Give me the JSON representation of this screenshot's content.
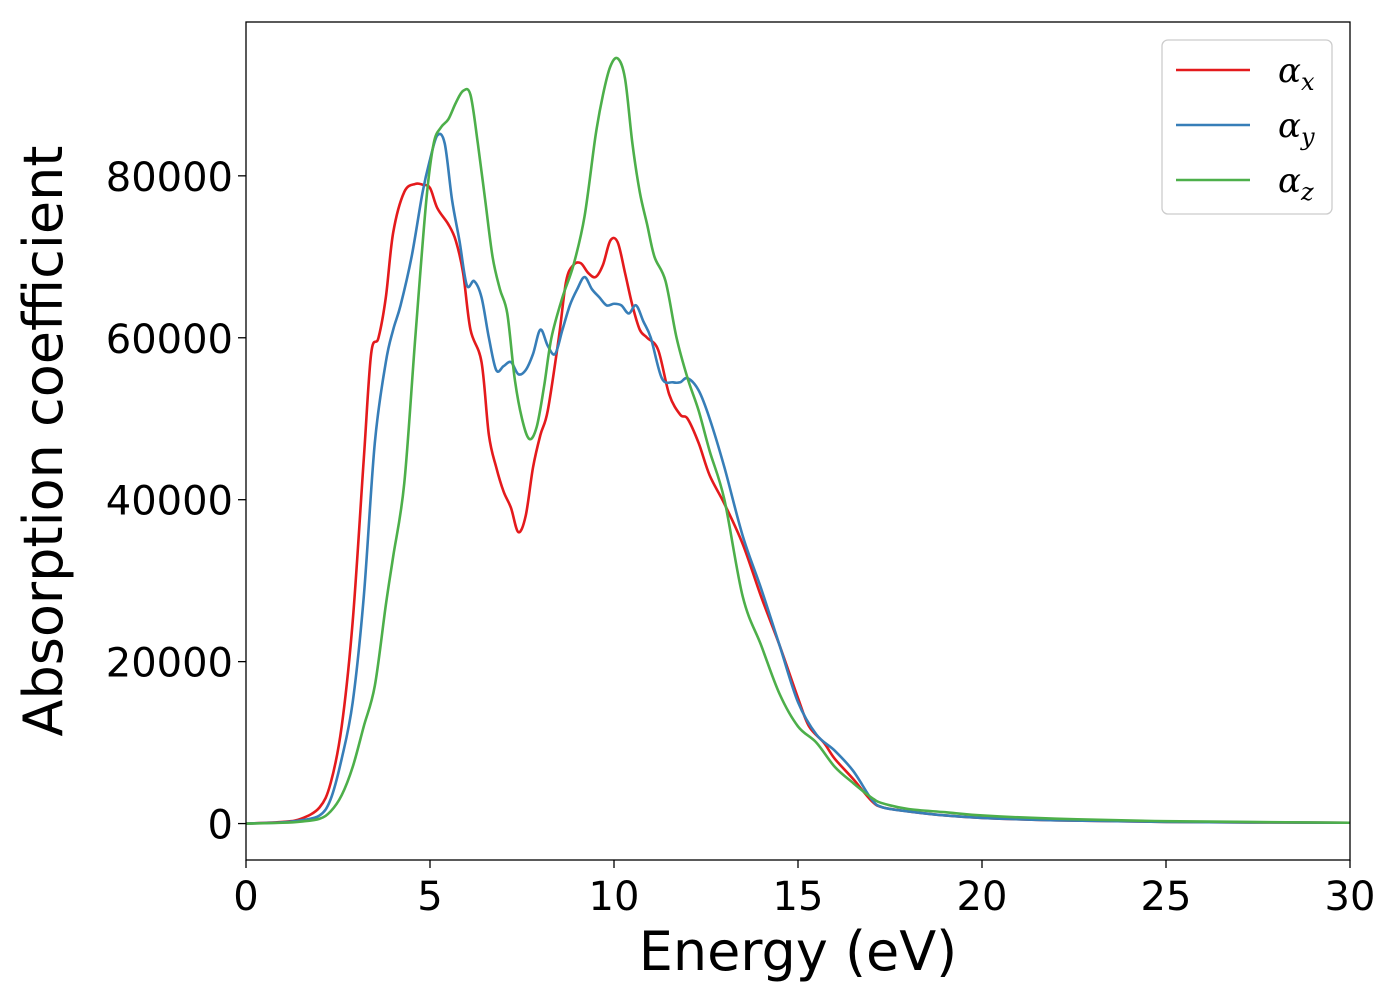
{
  "chart_data": {
    "type": "line",
    "xlabel": "Energy (eV)",
    "ylabel": "Absorption coefficient",
    "xlim": [
      0,
      30
    ],
    "ylim": [
      -4500,
      99000
    ],
    "xticks": [
      "0",
      "5",
      "10",
      "15",
      "20",
      "25",
      "30"
    ],
    "yticks": [
      "0",
      "20000",
      "40000",
      "60000",
      "80000"
    ],
    "grid": false,
    "legend_position": "top-right",
    "series": [
      {
        "name": "α",
        "subscript": "x",
        "color": "#e41a1c",
        "x": [
          0,
          1,
          1.5,
          2,
          2.3,
          2.6,
          2.9,
          3.2,
          3.4,
          3.6,
          3.8,
          4.0,
          4.3,
          4.6,
          4.8,
          5.0,
          5.2,
          5.5,
          5.7,
          5.9,
          6.1,
          6.4,
          6.6,
          6.8,
          7.0,
          7.2,
          7.4,
          7.6,
          7.8,
          8.0,
          8.2,
          8.5,
          8.7,
          8.9,
          9.1,
          9.3,
          9.5,
          9.7,
          9.9,
          10.1,
          10.3,
          10.5,
          10.7,
          10.9,
          11.2,
          11.5,
          11.8,
          12.0,
          12.3,
          12.6,
          13.0,
          13.5,
          14.0,
          14.5,
          15.0,
          15.3,
          15.7,
          16.0,
          16.5,
          17.0,
          17.3,
          18,
          19,
          20,
          22,
          25,
          30
        ],
        "y": [
          0,
          200,
          600,
          2000,
          5000,
          12000,
          25000,
          45000,
          58000,
          60000,
          65000,
          73000,
          78000,
          79000,
          78900,
          78500,
          76000,
          74000,
          72000,
          68000,
          61000,
          57000,
          48000,
          44000,
          41000,
          39000,
          36000,
          38000,
          44000,
          48000,
          51000,
          60000,
          67000,
          69000,
          69200,
          68000,
          67500,
          69000,
          72000,
          71800,
          68000,
          64000,
          61000,
          60000,
          58500,
          53000,
          50500,
          50000,
          47000,
          43000,
          39500,
          34500,
          28000,
          22000,
          15500,
          12000,
          10000,
          8000,
          5500,
          2800,
          2000,
          1500,
          1000,
          700,
          400,
          200,
          100
        ]
      },
      {
        "name": "α",
        "subscript": "y",
        "color": "#377eb8",
        "x": [
          0,
          1,
          1.5,
          2,
          2.3,
          2.6,
          2.9,
          3.2,
          3.5,
          3.8,
          4.0,
          4.2,
          4.5,
          4.8,
          5.0,
          5.2,
          5.4,
          5.6,
          5.8,
          6.0,
          6.2,
          6.4,
          6.6,
          6.8,
          7.0,
          7.2,
          7.4,
          7.6,
          7.8,
          8.0,
          8.2,
          8.4,
          8.6,
          8.8,
          9.0,
          9.2,
          9.4,
          9.6,
          9.8,
          10.0,
          10.2,
          10.4,
          10.6,
          10.8,
          11.0,
          11.3,
          11.6,
          11.8,
          12.0,
          12.3,
          12.6,
          13.0,
          13.5,
          14.0,
          14.5,
          15.0,
          15.5,
          16.0,
          16.5,
          17.0,
          17.3,
          18,
          19,
          20,
          22,
          25,
          30
        ],
        "y": [
          0,
          150,
          400,
          1000,
          3000,
          8000,
          15000,
          28000,
          47000,
          57000,
          61000,
          64000,
          70000,
          78000,
          82000,
          85000,
          84000,
          77000,
          72000,
          66500,
          67000,
          65000,
          60000,
          56000,
          56500,
          57000,
          55500,
          56000,
          58000,
          61000,
          59000,
          58000,
          61000,
          64000,
          66000,
          67500,
          66000,
          65000,
          64000,
          64200,
          64000,
          63000,
          64000,
          62000,
          60000,
          55000,
          54500,
          54500,
          55000,
          53500,
          50000,
          44000,
          35500,
          29000,
          22000,
          15000,
          11000,
          9000,
          6500,
          3000,
          2000,
          1500,
          1000,
          700,
          400,
          200,
          100
        ]
      },
      {
        "name": "α",
        "subscript": "z",
        "color": "#4daf4a",
        "x": [
          0,
          1,
          1.5,
          2,
          2.3,
          2.6,
          2.9,
          3.2,
          3.5,
          3.8,
          4.0,
          4.3,
          4.6,
          4.9,
          5.1,
          5.3,
          5.5,
          5.7,
          5.9,
          6.1,
          6.3,
          6.5,
          6.7,
          6.9,
          7.1,
          7.3,
          7.5,
          7.7,
          7.9,
          8.1,
          8.3,
          8.6,
          8.9,
          9.2,
          9.5,
          9.7,
          9.9,
          10.1,
          10.3,
          10.5,
          10.7,
          10.9,
          11.1,
          11.4,
          11.7,
          12.0,
          12.3,
          12.6,
          13.0,
          13.5,
          14.0,
          14.5,
          15.0,
          15.5,
          16.0,
          16.5,
          17.0,
          17.3,
          18,
          19,
          20,
          22,
          25,
          30
        ],
        "y": [
          0,
          100,
          250,
          600,
          1500,
          3500,
          7000,
          12000,
          17000,
          27000,
          33000,
          42000,
          60000,
          77000,
          84000,
          86000,
          87000,
          89000,
          90500,
          90000,
          84000,
          77000,
          70000,
          66000,
          63000,
          55000,
          50000,
          47500,
          49000,
          54000,
          60000,
          65000,
          69000,
          75000,
          85000,
          90000,
          93500,
          94500,
          92000,
          84000,
          78000,
          74000,
          70000,
          67000,
          60000,
          55000,
          51000,
          46000,
          40000,
          28000,
          22000,
          16000,
          12000,
          10000,
          7000,
          5000,
          3200,
          2500,
          1800,
          1400,
          1000,
          600,
          300,
          100
        ]
      }
    ]
  }
}
